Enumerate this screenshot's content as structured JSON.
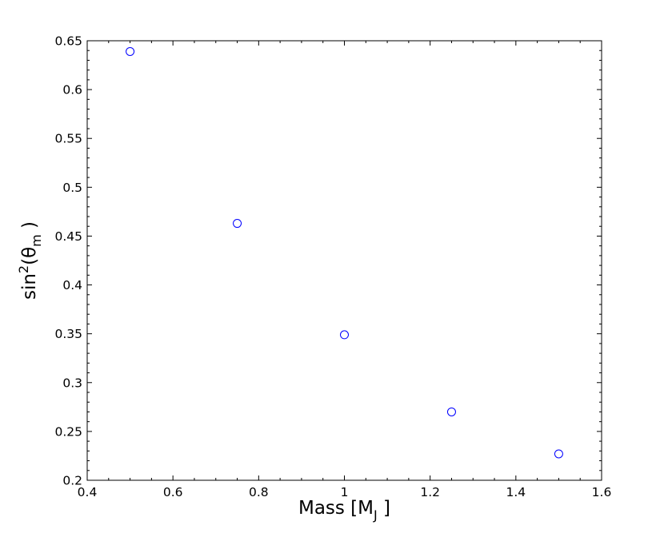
{
  "chart_data": {
    "type": "scatter",
    "xlabel": {
      "main": "Mass [M",
      "subscript": "J",
      "suffix": " ]"
    },
    "ylabel": {
      "prefix": "sin",
      "superscript": "2",
      "middle": "(θ",
      "subscript": "m",
      "suffix": " )"
    },
    "xlim": [
      0.4,
      1.6
    ],
    "ylim": [
      0.2,
      0.65
    ],
    "xticks": [
      0.4,
      0.6,
      0.8,
      1.0,
      1.2,
      1.4,
      1.6
    ],
    "xtick_labels": [
      "0.4",
      "0.6",
      "0.8",
      "1",
      "1.2",
      "1.4",
      "1.6"
    ],
    "yticks": [
      0.2,
      0.25,
      0.3,
      0.35,
      0.4,
      0.45,
      0.5,
      0.55,
      0.6,
      0.65
    ],
    "ytick_labels": [
      "0.2",
      "0.25",
      "0.3",
      "0.35",
      "0.4",
      "0.45",
      "0.5",
      "0.55",
      "0.6",
      "0.65"
    ],
    "grid": false,
    "marker": "open-circle",
    "marker_color": "#0000ff",
    "points": [
      {
        "x": 0.5,
        "y": 0.639
      },
      {
        "x": 0.75,
        "y": 0.463
      },
      {
        "x": 1.0,
        "y": 0.349
      },
      {
        "x": 1.25,
        "y": 0.27
      },
      {
        "x": 1.5,
        "y": 0.227
      }
    ]
  }
}
